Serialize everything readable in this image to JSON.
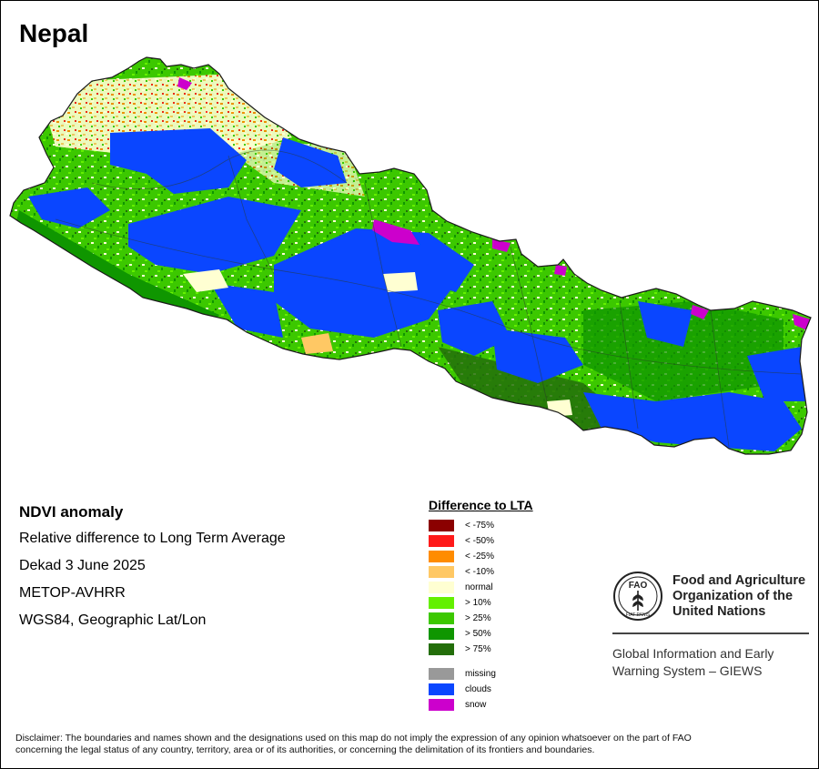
{
  "map": {
    "country": "Nepal"
  },
  "info": {
    "product": "NDVI anomaly",
    "description": "Relative difference to Long Term Average",
    "period": "Dekad 3 June 2025",
    "sensor": "METOP-AVHRR",
    "projection": "WGS84, Geographic Lat/Lon"
  },
  "legend": {
    "title": "Difference to LTA",
    "classes": [
      {
        "label": "< -75%",
        "color": "#8b0000"
      },
      {
        "label": "< -50%",
        "color": "#ff1a1a"
      },
      {
        "label": "< -25%",
        "color": "#ff8c00"
      },
      {
        "label": "< -10%",
        "color": "#ffc864"
      },
      {
        "label": "normal",
        "color": "#ffffd2"
      },
      {
        "label": "> 10%",
        "color": "#64f000"
      },
      {
        "label": "> 25%",
        "color": "#3cc800"
      },
      {
        "label": "> 50%",
        "color": "#0f9600"
      },
      {
        "label": "> 75%",
        "color": "#236e0a"
      }
    ],
    "special": [
      {
        "label": "missing",
        "color": "#999999"
      },
      {
        "label": "clouds",
        "color": "#0a46ff"
      },
      {
        "label": "snow",
        "color": "#cc00cc"
      }
    ]
  },
  "organization": {
    "name_line1": "Food and Agriculture",
    "name_line2": "Organization of the",
    "name_line3": "United Nations",
    "logo_letters": "FAO",
    "logo_motto": "FIAT PANIS",
    "program_line1": "Global Information and Early",
    "program_line2": "Warning System – GIEWS"
  },
  "disclaimer": {
    "line1": "Disclaimer: The boundaries and names shown and the designations used on this map do not imply the expression of any opinion whatsoever on the part of FAO",
    "line2": "concerning the legal status of any country, territory, area or of its authorities, or concerning the delimitation of its frontiers and boundaries."
  }
}
